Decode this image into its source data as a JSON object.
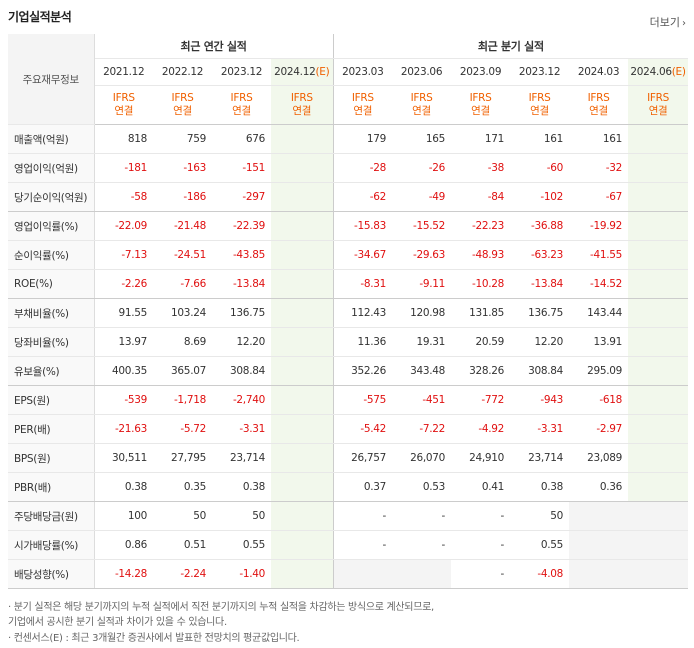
{
  "title": "기업실적분석",
  "more_label": "더보기",
  "corner_label": "주요재무정보",
  "groups": {
    "annual": "최근 연간 실적",
    "quarter": "최근 분기 실적"
  },
  "periods": [
    "2021.12",
    "2022.12",
    "2023.12",
    "2024.12",
    "2023.03",
    "2023.06",
    "2023.09",
    "2023.12",
    "2024.03",
    "2024.06"
  ],
  "estimate_mark": "(E)",
  "ifrs": "IFRS",
  "consolidated": "연결",
  "rows": [
    {
      "label": "매출액(억원)",
      "values": [
        "818",
        "759",
        "676",
        "",
        "179",
        "165",
        "171",
        "161",
        "161",
        ""
      ]
    },
    {
      "label": "영업이익(억원)",
      "values": [
        "-181",
        "-163",
        "-151",
        "",
        "-28",
        "-26",
        "-38",
        "-60",
        "-32",
        ""
      ]
    },
    {
      "label": "당기순이익(억원)",
      "values": [
        "-58",
        "-186",
        "-297",
        "",
        "-62",
        "-49",
        "-84",
        "-102",
        "-67",
        ""
      ]
    },
    {
      "label": "영업이익률(%)",
      "values": [
        "-22.09",
        "-21.48",
        "-22.39",
        "",
        "-15.83",
        "-15.52",
        "-22.23",
        "-36.88",
        "-19.92",
        ""
      ]
    },
    {
      "label": "순이익률(%)",
      "values": [
        "-7.13",
        "-24.51",
        "-43.85",
        "",
        "-34.67",
        "-29.63",
        "-48.93",
        "-63.23",
        "-41.55",
        ""
      ]
    },
    {
      "label": "ROE(%)",
      "values": [
        "-2.26",
        "-7.66",
        "-13.84",
        "",
        "-8.31",
        "-9.11",
        "-10.28",
        "-13.84",
        "-14.52",
        ""
      ]
    },
    {
      "label": "부채비율(%)",
      "values": [
        "91.55",
        "103.24",
        "136.75",
        "",
        "112.43",
        "120.98",
        "131.85",
        "136.75",
        "143.44",
        ""
      ]
    },
    {
      "label": "당좌비율(%)",
      "values": [
        "13.97",
        "8.69",
        "12.20",
        "",
        "11.36",
        "19.31",
        "20.59",
        "12.20",
        "13.91",
        ""
      ]
    },
    {
      "label": "유보율(%)",
      "values": [
        "400.35",
        "365.07",
        "308.84",
        "",
        "352.26",
        "343.48",
        "328.26",
        "308.84",
        "295.09",
        ""
      ]
    },
    {
      "label": "EPS(원)",
      "values": [
        "-539",
        "-1,718",
        "-2,740",
        "",
        "-575",
        "-451",
        "-772",
        "-943",
        "-618",
        ""
      ]
    },
    {
      "label": "PER(배)",
      "values": [
        "-21.63",
        "-5.72",
        "-3.31",
        "",
        "-5.42",
        "-7.22",
        "-4.92",
        "-3.31",
        "-2.97",
        ""
      ]
    },
    {
      "label": "BPS(원)",
      "values": [
        "30,511",
        "27,795",
        "23,714",
        "",
        "26,757",
        "26,070",
        "24,910",
        "23,714",
        "23,089",
        ""
      ]
    },
    {
      "label": "PBR(배)",
      "values": [
        "0.38",
        "0.35",
        "0.38",
        "",
        "0.37",
        "0.53",
        "0.41",
        "0.38",
        "0.36",
        ""
      ]
    },
    {
      "label": "주당배당금(원)",
      "values": [
        "100",
        "50",
        "50",
        "",
        "-",
        "-",
        "-",
        "50",
        "",
        ""
      ]
    },
    {
      "label": "시가배당률(%)",
      "values": [
        "0.86",
        "0.51",
        "0.55",
        "",
        "-",
        "-",
        "-",
        "0.55",
        "",
        ""
      ]
    },
    {
      "label": "배당성향(%)",
      "values": [
        "-14.28",
        "-2.24",
        "-1.40",
        "",
        "",
        "",
        "-",
        "-4.08",
        "",
        ""
      ]
    }
  ],
  "notes": [
    "· 분기 실적은 해당 분기까지의 누적 실적에서 직전 분기까지의 누적 실적을 차감하는 방식으로 계산되므로,",
    "  기업에서 공시한 분기 실적과 차이가 있을 수 있습니다.",
    "· 컨센서스(E) : 최근 3개월간 증권사에서 발표한 전망치의 평균값입니다."
  ]
}
